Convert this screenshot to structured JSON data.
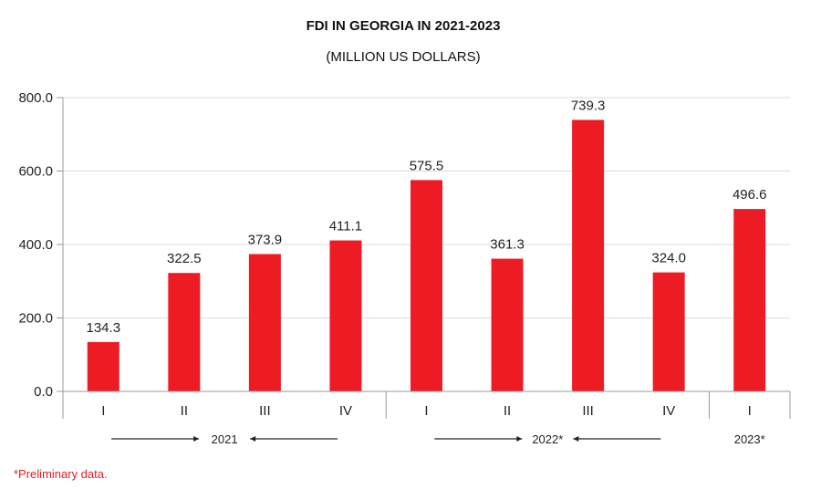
{
  "chart_data": {
    "type": "bar",
    "title": "FDI IN GEORGIA IN 2021-2023",
    "subtitle": "(MILLION US DOLLARS)",
    "categories": [
      "I",
      "II",
      "III",
      "IV",
      "I",
      "II",
      "III",
      "IV",
      "I"
    ],
    "values": [
      134.3,
      322.5,
      373.9,
      411.1,
      575.5,
      361.3,
      739.3,
      324.0,
      496.6
    ],
    "value_labels": [
      "134.3",
      "322.5",
      "373.9",
      "411.1",
      "575.5",
      "361.3",
      "739.3",
      "324.0",
      "496.6"
    ],
    "groups": [
      {
        "label": "2021",
        "start": 0,
        "end": 3
      },
      {
        "label": "2022*",
        "start": 4,
        "end": 7
      },
      {
        "label": "2023*",
        "start": 8,
        "end": 8
      }
    ],
    "ylim": [
      0,
      800
    ],
    "yticks": [
      0,
      200,
      400,
      600,
      800
    ],
    "ytick_labels": [
      "0.0",
      "200.0",
      "400.0",
      "600.0",
      "800.0"
    ],
    "grid": true,
    "bar_color": "#ed1c24",
    "footnote": "*Preliminary data."
  }
}
